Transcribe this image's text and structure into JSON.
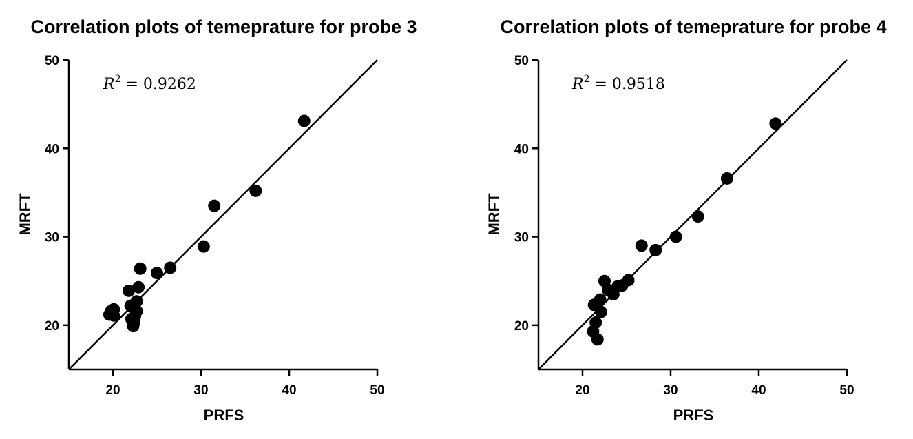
{
  "chart_data": [
    {
      "type": "scatter",
      "title": "Correlation plots of temeprature for probe 3",
      "xlabel": "PRFS",
      "ylabel": "MRFT",
      "xlim": [
        15,
        50
      ],
      "ylim": [
        15,
        50
      ],
      "xticks": [
        20,
        30,
        40,
        50
      ],
      "yticks": [
        20,
        30,
        40,
        50
      ],
      "tick_labels_x": [
        "20",
        "30",
        "40",
        "50"
      ],
      "tick_labels_y": [
        "20",
        "30",
        "40",
        "50"
      ],
      "annotation": {
        "var": "R",
        "exp": "2",
        "rest": " = 0.9262"
      },
      "fit_line": {
        "from": [
          15,
          15
        ],
        "to": [
          50,
          50
        ]
      },
      "grid": false,
      "points": [
        {
          "x": 19.6,
          "y": 21.2
        },
        {
          "x": 19.8,
          "y": 21.6
        },
        {
          "x": 20.1,
          "y": 21.1
        },
        {
          "x": 20.1,
          "y": 21.8
        },
        {
          "x": 21.8,
          "y": 23.9
        },
        {
          "x": 22.0,
          "y": 22.2
        },
        {
          "x": 22.1,
          "y": 20.7
        },
        {
          "x": 22.3,
          "y": 19.9
        },
        {
          "x": 22.4,
          "y": 20.3
        },
        {
          "x": 22.5,
          "y": 21.0
        },
        {
          "x": 22.7,
          "y": 21.6
        },
        {
          "x": 22.7,
          "y": 22.7
        },
        {
          "x": 22.9,
          "y": 24.3
        },
        {
          "x": 23.1,
          "y": 26.4
        },
        {
          "x": 25.0,
          "y": 25.9
        },
        {
          "x": 26.5,
          "y": 26.5
        },
        {
          "x": 30.3,
          "y": 28.9
        },
        {
          "x": 31.5,
          "y": 33.5
        },
        {
          "x": 36.2,
          "y": 35.2
        },
        {
          "x": 41.7,
          "y": 43.1
        }
      ]
    },
    {
      "type": "scatter",
      "title": "Correlation plots of temeprature for probe 4",
      "xlabel": "PRFS",
      "ylabel": "MRFT",
      "xlim": [
        15,
        50
      ],
      "ylim": [
        15,
        50
      ],
      "xticks": [
        20,
        30,
        40,
        50
      ],
      "yticks": [
        20,
        30,
        40,
        50
      ],
      "tick_labels_x": [
        "20",
        "30",
        "40",
        "50"
      ],
      "tick_labels_y": [
        "20",
        "30",
        "40",
        "50"
      ],
      "annotation": {
        "var": "R",
        "exp": "2",
        "rest": " = 0.9518"
      },
      "fit_line": {
        "from": [
          15,
          15
        ],
        "to": [
          50,
          50
        ]
      },
      "grid": false,
      "points": [
        {
          "x": 21.2,
          "y": 19.3
        },
        {
          "x": 21.3,
          "y": 22.3
        },
        {
          "x": 21.5,
          "y": 20.3
        },
        {
          "x": 21.7,
          "y": 18.4
        },
        {
          "x": 22.0,
          "y": 22.9
        },
        {
          "x": 22.1,
          "y": 21.5
        },
        {
          "x": 22.5,
          "y": 25.0
        },
        {
          "x": 22.9,
          "y": 24.0
        },
        {
          "x": 23.5,
          "y": 23.5
        },
        {
          "x": 24.0,
          "y": 24.4
        },
        {
          "x": 24.5,
          "y": 24.5
        },
        {
          "x": 25.2,
          "y": 25.1
        },
        {
          "x": 26.7,
          "y": 29.0
        },
        {
          "x": 28.3,
          "y": 28.5
        },
        {
          "x": 30.6,
          "y": 30.0
        },
        {
          "x": 33.1,
          "y": 32.3
        },
        {
          "x": 36.4,
          "y": 36.6
        },
        {
          "x": 41.9,
          "y": 42.8
        }
      ]
    }
  ]
}
